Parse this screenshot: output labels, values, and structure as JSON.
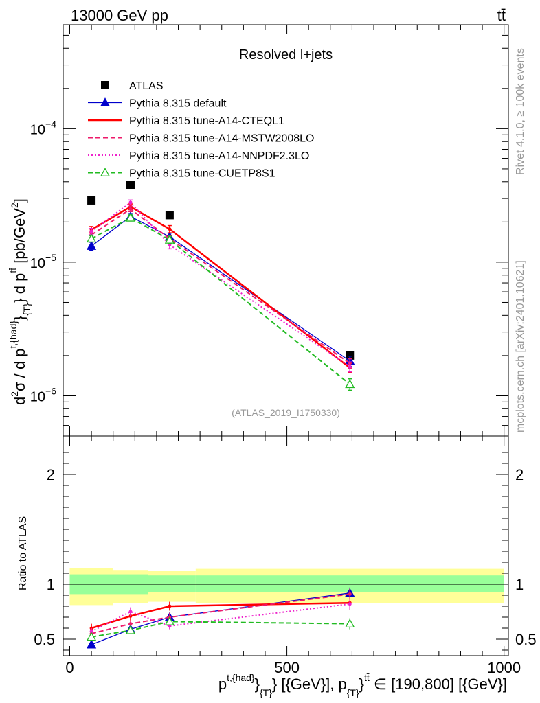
{
  "header": {
    "left": "13000 GeV pp",
    "right": "tt̄"
  },
  "side": {
    "rivet": "Rivet 4.1.0, ≥ 100k events",
    "mcplots": "mcplots.cern.ch [arXiv:2401.10621]"
  },
  "chart_data": [
    {
      "type": "line",
      "panel": "main",
      "title": "Resolved l+jets",
      "watermark": "(ATLAS_2019_I1750330)",
      "ylabel": "d²σ / d p^{t,{had}}_{T} d p_{T}^{tt̄} [pb/GeV²]",
      "ylabel_parts": {
        "lead": "d",
        "sup2": "2",
        "sigma": "σ / d p",
        "sup_thad": "t,{had}",
        "brace1": "}",
        "sub_t": "{T}",
        "mid": "} d p",
        "sup_tt": "tt̄",
        "bracket": "[pb/GeV",
        "close": "]"
      },
      "yscale": "log",
      "ylim": [
        5e-07,
        0.0006
      ],
      "xlim": [
        -15,
        1010
      ],
      "yticks": [
        {
          "v": 1e-06,
          "base": "10",
          "exp": "−6"
        },
        {
          "v": 1e-05,
          "base": "10",
          "exp": "−5"
        },
        {
          "v": 0.0001,
          "base": "10",
          "exp": "−4"
        }
      ],
      "x": [
        50,
        140,
        230,
        645
      ],
      "series": [
        {
          "name": "ATLAS",
          "style": "data",
          "color": "#000000",
          "values": [
            2.9e-05,
            3.8e-05,
            2.25e-05,
            2e-06
          ],
          "errors": [
            0,
            0,
            0,
            0
          ]
        },
        {
          "name": "Pythia 8.315 default",
          "style": "solid-triangle",
          "color": "#0000cc",
          "values": [
            1.32e-05,
            2.2e-05,
            1.55e-05,
            1.82e-06
          ],
          "errors": [
            9e-07,
            1.1e-06,
            1e-06,
            1.6e-07
          ]
        },
        {
          "name": "Pythia 8.315 tune-A14-CTEQL1",
          "style": "solid",
          "color": "#ff0000",
          "values": [
            1.75e-05,
            2.6e-05,
            1.77e-05,
            1.62e-06
          ],
          "errors": [
            1e-06,
            1.3e-06,
            1.1e-06,
            1.3e-07
          ]
        },
        {
          "name": "Pythia 8.315 tune-A14-MSTW2008LO",
          "style": "dashed",
          "color": "#ee1a6a",
          "values": [
            1.6e-05,
            2.5e-05,
            1.5e-05,
            1.75e-06
          ],
          "errors": [
            8e-07,
            1.1e-06,
            9e-07,
            1.4e-07
          ]
        },
        {
          "name": "Pythia 8.315 tune-A14-NNPDF2.3LO",
          "style": "dotted",
          "color": "#ee22cc",
          "values": [
            1.7e-05,
            2.8e-05,
            1.35e-05,
            1.65e-06
          ],
          "errors": [
            9e-07,
            1.2e-06,
            9e-07,
            1.4e-07
          ]
        },
        {
          "name": "Pythia 8.315 tune-CUETP8S1",
          "style": "dashed-open-triangle",
          "color": "#22bb22",
          "values": [
            1.5e-05,
            2.15e-05,
            1.47e-05,
            1.22e-06
          ],
          "errors": [
            8e-07,
            1.1e-06,
            9e-07,
            1.2e-07
          ]
        }
      ]
    },
    {
      "type": "line",
      "panel": "ratio",
      "ylabel": "Ratio to ATLAS",
      "ylim": [
        0.35,
        2.35
      ],
      "xlim": [
        -15,
        1010
      ],
      "yticks": [
        0.5,
        1,
        2
      ],
      "xticks": [
        0,
        500,
        1000
      ],
      "xlabel": "p^{t,{had}}_{T} [{GeV}], p_{T}^{tt̄} ∈ [190,800] [{GeV}]",
      "xlabel_parts": {
        "p1": "p",
        "sup_thad": "t,{had}",
        "brace": "}",
        "sub_t1": "{T}",
        "mid": "} [{GeV}], p",
        "sub_t2": "{T}",
        "close_brace": "}",
        "sup_tt": "tt̄",
        "rest": " ∈ [190,800] [{GeV}]"
      },
      "bands": {
        "bin_edges": [
          0,
          100,
          180,
          290,
          1000
        ],
        "stat_low": [
          0.91,
          0.91,
          0.93,
          0.93
        ],
        "stat_high": [
          1.09,
          1.09,
          1.08,
          1.08
        ],
        "total_low": [
          0.81,
          0.83,
          0.84,
          0.83
        ],
        "total_high": [
          1.15,
          1.13,
          1.12,
          1.14
        ],
        "stat_color": "#99ff99",
        "total_color": "#ffff99"
      },
      "x": [
        50,
        140,
        230,
        645
      ],
      "series": [
        {
          "name": "Pythia 8.315 default",
          "style": "solid-triangle",
          "color": "#0000cc",
          "values": [
            0.45,
            0.59,
            0.7,
            0.92
          ],
          "errors": [
            0.03,
            0.03,
            0.03,
            0.05
          ]
        },
        {
          "name": "Pythia 8.315 tune-A14-CTEQL1",
          "style": "solid",
          "color": "#ff0000",
          "values": [
            0.6,
            0.71,
            0.8,
            0.83
          ],
          "errors": [
            0.04,
            0.04,
            0.04,
            0.06
          ]
        },
        {
          "name": "Pythia 8.315 tune-A14-MSTW2008LO",
          "style": "dashed",
          "color": "#ee1a6a",
          "values": [
            0.55,
            0.64,
            0.7,
            0.91
          ],
          "errors": [
            0.03,
            0.03,
            0.04,
            0.05
          ]
        },
        {
          "name": "Pythia 8.315 tune-A14-NNPDF2.3LO",
          "style": "dotted",
          "color": "#ee22cc",
          "values": [
            0.57,
            0.75,
            0.62,
            0.82
          ],
          "errors": [
            0.03,
            0.04,
            0.03,
            0.05
          ]
        },
        {
          "name": "Pythia 8.315 tune-CUETP8S1",
          "style": "dashed-open-triangle",
          "color": "#22bb22",
          "values": [
            0.52,
            0.58,
            0.66,
            0.64
          ],
          "errors": [
            0.03,
            0.03,
            0.03,
            0.05
          ]
        }
      ]
    }
  ]
}
